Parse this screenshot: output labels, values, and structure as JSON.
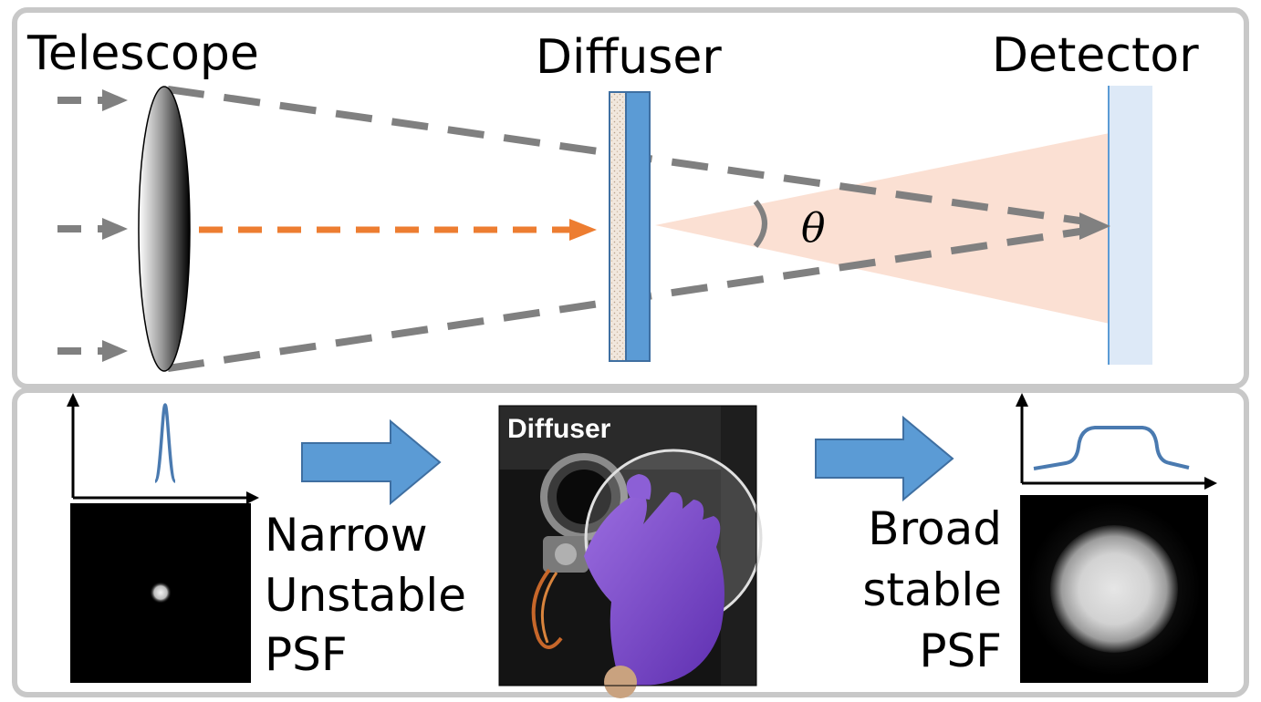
{
  "top_panel": {
    "telescope_label": "Telescope",
    "diffuser_label": "Diffuser",
    "detector_label": "Detector",
    "angle_label": "θ"
  },
  "bottom_panel": {
    "narrow_psf_label": [
      "Narrow",
      "Unstable",
      "PSF"
    ],
    "photo_label": "Diffuser",
    "broad_psf_label": [
      "Broad",
      "stable",
      "PSF"
    ]
  },
  "colors": {
    "panel_border": "#c8c8c8",
    "ray_gray": "#808080",
    "ray_orange": "#ed7d31",
    "diffuser_blue": "#5b9bd5",
    "detector_blue": "#dde9f7",
    "cone_peach": "#fbe0d3",
    "arrow_blue": "#5b9bd5",
    "psf_curve": "#4a7ab0"
  },
  "icons": {
    "lens": "biconvex-lens-icon",
    "big_arrow": "right-arrow-icon"
  }
}
